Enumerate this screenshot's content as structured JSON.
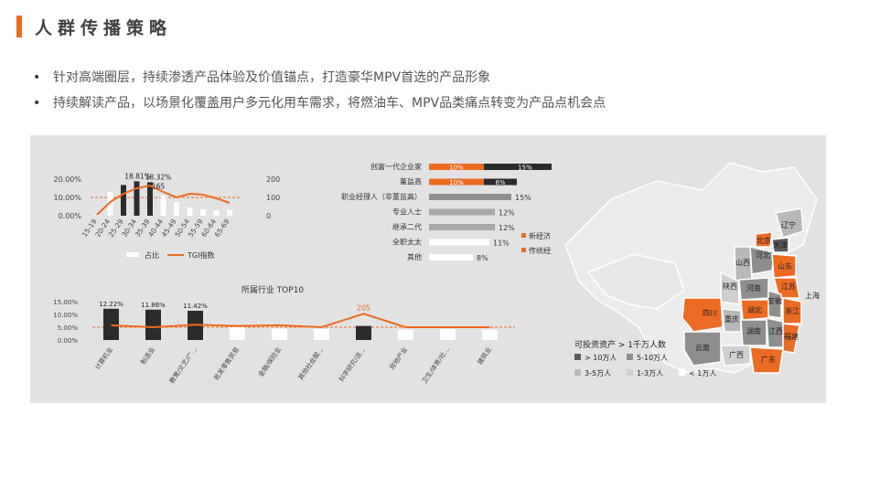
{
  "page": {
    "title": "人群传播策略"
  },
  "bullets": [
    "针对高端圈层，持续渗透产品体验及价值锚点，打造豪华MPV首选的产品形象",
    "持续解读产品，以场景化覆盖用户多元化用车需求，将燃油车、MPV品类痛点转变为产品点机会点"
  ],
  "colors": {
    "accent": "#ec6b23",
    "dark": "#2b2b2b",
    "panel": "#e2e2e2",
    "bar_light": "#ffffff",
    "bar_gray": "#a8a8a8"
  },
  "chart_data": [
    {
      "type": "bar",
      "categories": [
        "15-19",
        "20-24",
        "25-29",
        "30-34",
        "35-39",
        "40-44",
        "45-49",
        "50-54",
        "55-59",
        "60-64",
        "65-69"
      ],
      "series": [
        {
          "name": "占比",
          "values": [
            0.5,
            13.0,
            16.8,
            18.81,
            18.32,
            11.0,
            7.5,
            4.5,
            3.5,
            3.0,
            3.2
          ]
        },
        {
          "name": "TGI指数",
          "values": [
            5,
            75,
            120,
            150,
            165,
            130,
            100,
            120,
            115,
            95,
            70
          ]
        }
      ],
      "highlight": [
        false,
        false,
        true,
        true,
        true,
        false,
        false,
        false,
        false,
        false,
        false
      ],
      "annotations": [
        "18.81%",
        "18.32%",
        "165"
      ],
      "y_ticks_left": [
        "20.00%",
        "10.00%",
        "0.00%"
      ],
      "y_ticks_right": [
        "200",
        "100",
        "0"
      ],
      "ylim_left": [
        0,
        20
      ],
      "ylim_right": [
        0,
        200
      ]
    },
    {
      "type": "bar",
      "title": "所属行业 TOP10",
      "categories": [
        "计算机业",
        "制造业",
        "教育/文艺/广...",
        "批发零售贸易",
        "金融/保险业",
        "其他社会服...",
        "科学研究/咨...",
        "房地产业",
        "卫生/体育/社...",
        "建筑业"
      ],
      "values": [
        12.22,
        11.86,
        11.42,
        5.0,
        4.5,
        4.3,
        5.5,
        4.0,
        4.2,
        4.0
      ],
      "tgi": [
        115,
        100,
        120,
        110,
        115,
        100,
        205,
        100,
        100,
        100
      ],
      "highlight": [
        true,
        true,
        true,
        false,
        false,
        false,
        true,
        false,
        false,
        false
      ],
      "annotations": [
        "12.22%",
        "11.86%",
        "11.42%",
        "205"
      ],
      "y_ticks": [
        "15.00%",
        "10.00%",
        "5.00%",
        "0.00%"
      ],
      "ylim": [
        0,
        15
      ],
      "ylim_right": [
        0,
        300
      ]
    },
    {
      "type": "bar",
      "orientation": "horizontal",
      "categories": [
        "创富一代企业家",
        "董监高",
        "职业经理人（非董监高）",
        "专业人士",
        "继承二代",
        "全职太太",
        "其他"
      ],
      "series": [
        {
          "name": "新经济",
          "values": [
            10,
            10,
            null,
            null,
            null,
            null,
            null
          ]
        },
        {
          "name": "传统经济",
          "values": [
            15,
            6,
            15,
            12,
            12,
            11,
            8
          ]
        }
      ],
      "labels": [
        [
          "10%",
          "15%"
        ],
        [
          "10%",
          "6%"
        ],
        [
          "",
          "15%"
        ],
        [
          "",
          "12%"
        ],
        [
          "",
          "12%"
        ],
        [
          "",
          "11%"
        ],
        [
          "",
          "8%"
        ]
      ],
      "legend": [
        "新经济",
        "传统经济"
      ]
    }
  ],
  "map": {
    "legend_title": "可投资资产 > 1千万人数",
    "legend_items": [
      {
        "label": "> 10万人",
        "color": "#5a5a5a"
      },
      {
        "label": "5-10万人",
        "color": "#8e8e8e"
      },
      {
        "label": "3-5万人",
        "color": "#b8b8b8"
      },
      {
        "label": "1-3万人",
        "color": "#d0d0d0"
      },
      {
        "label": "< 1万人",
        "color": "#ffffff"
      }
    ],
    "provinces": [
      "辽宁",
      "北京",
      "天津",
      "河北",
      "山西",
      "山东",
      "陕西",
      "河南",
      "江苏",
      "安徽",
      "上海",
      "四川",
      "湖北",
      "浙江",
      "重庆",
      "湖南",
      "江西",
      "福建",
      "云南",
      "广西",
      "广东"
    ]
  }
}
